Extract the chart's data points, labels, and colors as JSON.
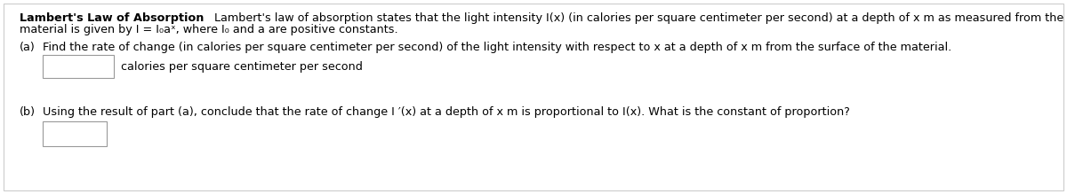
{
  "background_color": "#ffffff",
  "border_color": "#cccccc",
  "title_bold": "Lambert's Law of Absorption",
  "title_normal": "  Lambert's law of absorption states that the light intensity I(x) (in calories per square centimeter per second) at a depth of x m as measured from the surface of a",
  "line2": "material is given by I = I₀aˣ, where I₀ and a are positive constants.",
  "part_a_label": "(a)",
  "part_a_text": "Find the rate of change (in calories per square centimeter per second) of the light intensity with respect to x at a depth of x m from the surface of the material.",
  "part_a_unit": "calories per square centimeter per second",
  "part_b_label": "(b)",
  "part_b_text": "Using the result of part (a), conclude that the rate of change I ′(x) at a depth of x m is proportional to I(x). What is the constant of proportion?",
  "font_size": 9.2,
  "fig_width": 12.0,
  "fig_height": 2.19,
  "dpi": 100
}
